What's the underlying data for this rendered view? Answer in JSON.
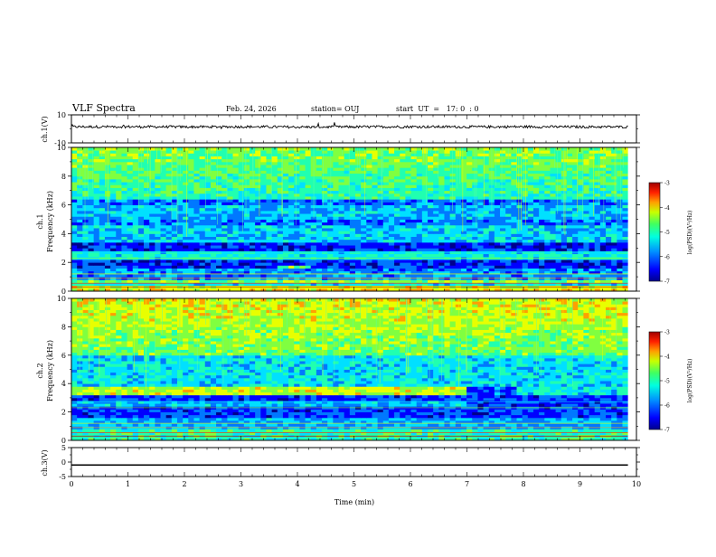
{
  "header": {
    "title": "VLF Spectra",
    "date": "Feb. 24, 2026",
    "station": "station= OUJ",
    "start": "start  UT  =   17: 0  : 0"
  },
  "colors": {
    "colormap": [
      "#00008c",
      "#0000ff",
      "#0078ff",
      "#00e0ff",
      "#20ffb0",
      "#80ff40",
      "#e8ff00",
      "#ffa000",
      "#ff2000",
      "#b00000"
    ],
    "trace": "#000000",
    "axis": "#000000"
  },
  "chart_data": [
    {
      "id": "ch1-waveform",
      "type": "line",
      "ylabel": "ch.1(V)",
      "ylim": [
        -10,
        10
      ],
      "yticks": [
        10,
        -10
      ],
      "x": [
        0,
        1,
        2,
        3,
        4,
        5,
        6,
        7,
        8,
        9,
        9.85
      ],
      "values": [
        1.5,
        1.5,
        1.4,
        1.5,
        1.3,
        1.4,
        1.5,
        1.4,
        1.5,
        1.4,
        1.4
      ]
    },
    {
      "id": "ch1-spectrogram",
      "type": "heatmap",
      "ylabel": "ch.1",
      "ylabel2": "Frequency (kHz)",
      "ylim": [
        0,
        10
      ],
      "yticks": [
        0,
        2,
        4,
        6,
        8,
        10
      ],
      "colorbar": {
        "range": [
          -7,
          -3
        ],
        "ticks": [
          -3,
          -4,
          -5,
          -6,
          -7
        ],
        "label": "log(PSD)(V²/Hz)"
      }
    },
    {
      "id": "ch2-spectrogram",
      "type": "heatmap",
      "ylabel": "ch.2",
      "ylabel2": "Frequency (kHz)",
      "ylim": [
        0,
        10
      ],
      "yticks": [
        0,
        2,
        4,
        6,
        8,
        10
      ],
      "colorbar": {
        "range": [
          -7,
          -3
        ],
        "ticks": [
          -3,
          -4,
          -5,
          -6,
          -7
        ],
        "label": "log(PSD)(V²/Hz)"
      }
    },
    {
      "id": "ch3-waveform",
      "type": "line",
      "ylabel": "ch.3(V)",
      "ylim": [
        -5,
        5
      ],
      "yticks": [
        5,
        0,
        -5
      ],
      "x": [
        0,
        9.85
      ],
      "values": [
        -1.0,
        -1.0
      ]
    }
  ],
  "xaxis": {
    "label": "Time (min)",
    "range": [
      0,
      10
    ],
    "ticks": [
      "0",
      "1",
      "2",
      "3",
      "4",
      "5",
      "6",
      "7",
      "8",
      "9",
      "10"
    ]
  }
}
